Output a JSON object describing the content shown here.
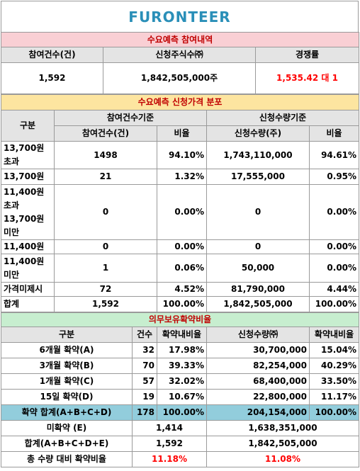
{
  "logo": "FURONTEER",
  "section1": {
    "title": "수요예측 참여내역",
    "headers": [
      "참여건수(건)",
      "신청주식수㈜",
      "경쟁률"
    ],
    "values": [
      "1,592",
      "1,842,505,000주",
      "1,535.42 대 1"
    ]
  },
  "section2": {
    "title": "수요예측 신청가격 분포",
    "group_headers": [
      "구분",
      "참여건수기준",
      "신청수량기준"
    ],
    "sub_headers": [
      "참여건수(건)",
      "비율",
      "신청수량(주)",
      "비율"
    ],
    "rows": [
      [
        "13,700원\n초과",
        "1498",
        "94.10%",
        "1,743,110,000",
        "94.61%"
      ],
      [
        "13,700원",
        "21",
        "1.32%",
        "17,555,000",
        "0.95%"
      ],
      [
        "11,400원\n초과\n13,700원\n미만",
        "0",
        "0.00%",
        "0",
        "0.00%"
      ],
      [
        "11,400원",
        "0",
        "0.00%",
        "0",
        "0.00%"
      ],
      [
        "11,400원\n미만",
        "1",
        "0.06%",
        "50,000",
        "0.00%"
      ],
      [
        "가격미제시",
        "72",
        "4.52%",
        "81,790,000",
        "4.44%"
      ],
      [
        "합계",
        "1,592",
        "100.00%",
        "1,842,505,000",
        "100.00%"
      ]
    ]
  },
  "section3": {
    "title": "의무보유확약비율",
    "headers": [
      "구분",
      "건수",
      "확약내비율",
      "신청수량㈜",
      "확약내비율"
    ],
    "rows": [
      [
        "6개월 확약(A)",
        "32",
        "17.98%",
        "30,700,000",
        "15.04%"
      ],
      [
        "3개월 확약(B)",
        "70",
        "39.33%",
        "82,254,000",
        "40.29%"
      ],
      [
        "1개월 확약(C)",
        "57",
        "32.02%",
        "68,400,000",
        "33.50%"
      ],
      [
        "15일 확약(D)",
        "19",
        "10.67%",
        "22,800,000",
        "11.17%"
      ],
      [
        "확약 합계(A+B+C+D)",
        "178",
        "100.00%",
        "204,154,000",
        "100.00%"
      ]
    ],
    "totals": [
      [
        "미확약 (E)",
        "1,414",
        "1,638,351,000"
      ],
      [
        "합계(A+B+C+D+E)",
        "1,592",
        "1,842,505,000"
      ],
      [
        "총 수량 대비 확약비율",
        "11.18%",
        "11.08%"
      ]
    ]
  }
}
